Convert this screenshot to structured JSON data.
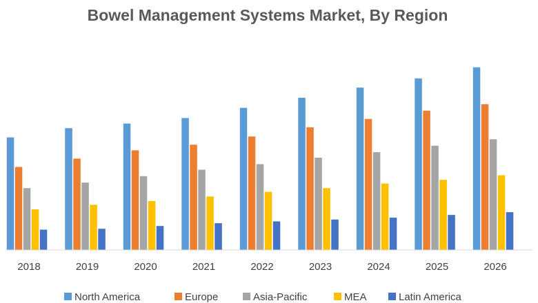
{
  "chart_data": {
    "type": "bar",
    "title": "Bowel Management Systems Market, By Region",
    "xlabel": "",
    "ylabel": "",
    "categories": [
      "2018",
      "2019",
      "2020",
      "2021",
      "2022",
      "2023",
      "2024",
      "2025",
      "2026"
    ],
    "ylim": [
      0,
      100
    ],
    "grid": false,
    "legend": "bottom",
    "series": [
      {
        "name": "North America",
        "color": "#5B9BD5",
        "values": [
          61,
          66,
          68.5,
          71.5,
          77,
          82.5,
          88,
          93,
          99
        ]
      },
      {
        "name": "Europe",
        "color": "#ED7D31",
        "values": [
          45,
          49.5,
          54,
          57,
          61.5,
          66.5,
          71,
          75.5,
          79
        ]
      },
      {
        "name": "Asia-Pacific",
        "color": "#A5A5A5",
        "values": [
          33.5,
          36.5,
          40,
          43.5,
          46.5,
          50,
          53,
          56.5,
          60
        ]
      },
      {
        "name": "MEA",
        "color": "#FFC000",
        "values": [
          22,
          24.5,
          26.5,
          29,
          31.5,
          33.5,
          36,
          38,
          40.5
        ]
      },
      {
        "name": "Latin America",
        "color": "#4472C4",
        "values": [
          11,
          11.5,
          13,
          14.5,
          15.5,
          16.5,
          17.5,
          19,
          20.5
        ]
      }
    ]
  }
}
